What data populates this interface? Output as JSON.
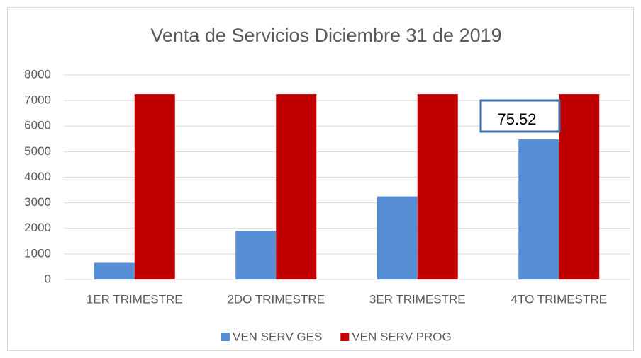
{
  "chart_data": {
    "type": "bar",
    "title": "Venta de Servicios Diciembre 31 de 2019",
    "categories": [
      "1ER TRIMESTRE",
      "2DO TRIMESTRE",
      "3ER TRIMESTRE",
      "4TO TRIMESTRE"
    ],
    "series": [
      {
        "name": "VEN SERV GES",
        "color": "#558ed5",
        "values": [
          650,
          1900,
          3250,
          5480
        ]
      },
      {
        "name": "VEN SERV PROG",
        "color": "#c00000",
        "values": [
          7250,
          7250,
          7250,
          7250
        ]
      }
    ],
    "ylim": [
      0,
      8000
    ],
    "yticks": [
      0,
      1000,
      2000,
      3000,
      4000,
      5000,
      6000,
      7000,
      8000
    ],
    "grid": true,
    "legend": "bottom",
    "annotation": "75.52"
  }
}
